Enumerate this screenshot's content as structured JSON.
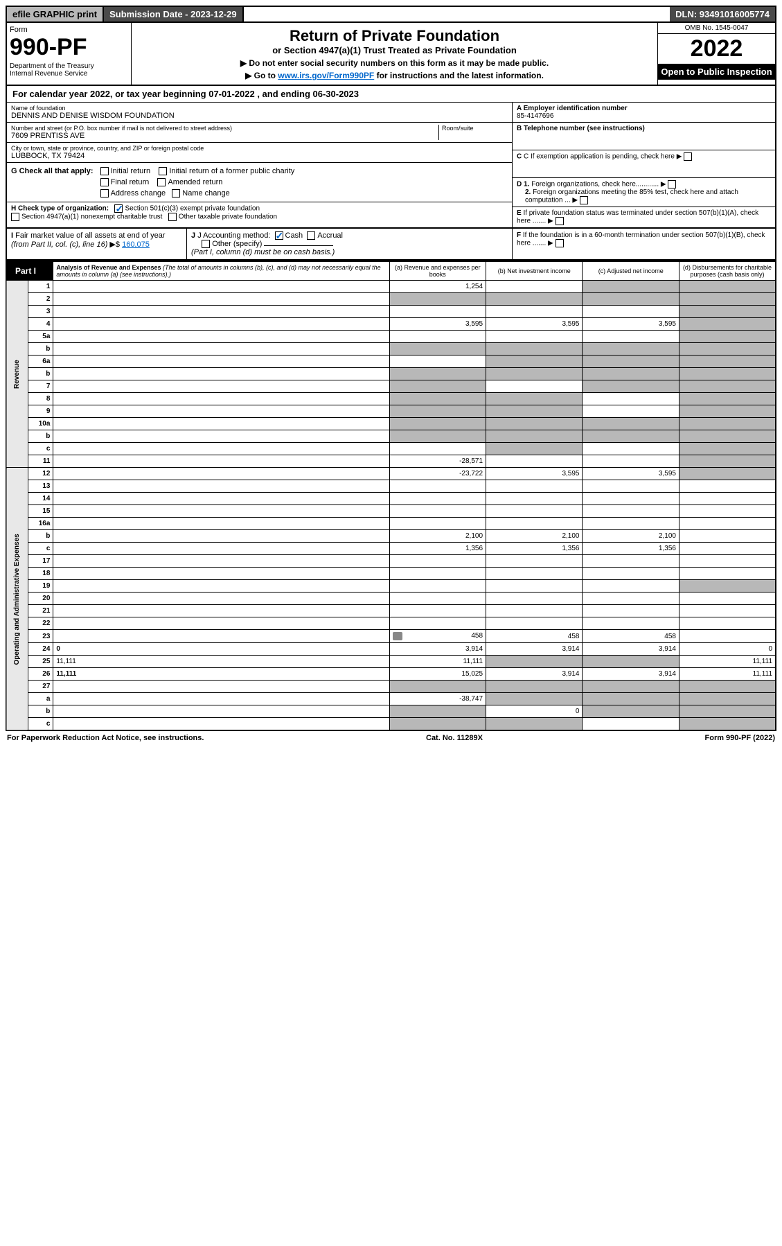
{
  "topbar": {
    "efile": "efile GRAPHIC print",
    "sub_label": "Submission Date - 2023-12-29",
    "dln": "DLN: 93491016005774"
  },
  "header": {
    "form_label": "Form",
    "form_num": "990-PF",
    "dept": "Department of the Treasury\nInternal Revenue Service",
    "title": "Return of Private Foundation",
    "subtitle": "or Section 4947(a)(1) Trust Treated as Private Foundation",
    "instr1": "▶ Do not enter social security numbers on this form as it may be made public.",
    "instr2_pre": "▶ Go to ",
    "instr2_link": "www.irs.gov/Form990PF",
    "instr2_post": " for instructions and the latest information.",
    "omb": "OMB No. 1545-0047",
    "year": "2022",
    "inspection": "Open to Public Inspection"
  },
  "cal_year": "For calendar year 2022, or tax year beginning 07-01-2022                        , and ending 06-30-2023",
  "info": {
    "name_label": "Name of foundation",
    "name_val": "DENNIS AND DENISE WISDOM FOUNDATION",
    "addr_label": "Number and street (or P.O. box number if mail is not delivered to street address)",
    "addr_val": "7609 PRENTISS AVE",
    "room_label": "Room/suite",
    "city_label": "City or town, state or province, country, and ZIP or foreign postal code",
    "city_val": "LUBBOCK, TX  79424",
    "a_label": "A Employer identification number",
    "a_val": "85-4147696",
    "b_label": "B Telephone number (see instructions)",
    "c_label": "C If exemption application is pending, check here",
    "d1_label": "D 1. Foreign organizations, check here............",
    "d2_label": "2. Foreign organizations meeting the 85% test, check here and attach computation ...",
    "e_label": "E  If private foundation status was terminated under section 507(b)(1)(A), check here .......",
    "f_label": "F  If the foundation is in a 60-month termination under section 507(b)(1)(B), check here .......",
    "g_label": "G Check all that apply:",
    "g_opts": [
      "Initial return",
      "Initial return of a former public charity",
      "Final return",
      "Amended return",
      "Address change",
      "Name change"
    ],
    "h_label": "H Check type of organization:",
    "h_opts": [
      "Section 501(c)(3) exempt private foundation",
      "Section 4947(a)(1) nonexempt charitable trust",
      "Other taxable private foundation"
    ],
    "i_label": "I Fair market value of all assets at end of year (from Part II, col. (c), line 16) ▶$",
    "i_val": "160,075",
    "j_label": "J Accounting method:",
    "j_cash": "Cash",
    "j_accrual": "Accrual",
    "j_other": "Other (specify)",
    "j_note": "(Part I, column (d) must be on cash basis.)"
  },
  "part1": {
    "badge": "Part I",
    "title": "Analysis of Revenue and Expenses",
    "note": "(The total of amounts in columns (b), (c), and (d) may not necessarily equal the amounts in column (a) (see instructions).)",
    "col_a": "(a)   Revenue and expenses per books",
    "col_b": "(b)   Net investment income",
    "col_c": "(c)   Adjusted net income",
    "col_d": "(d)   Disbursements for charitable purposes (cash basis only)"
  },
  "side": {
    "revenue": "Revenue",
    "expenses": "Operating and Administrative Expenses"
  },
  "rows": [
    {
      "n": "1",
      "d": "",
      "a": "1,254",
      "b": "",
      "c": "",
      "ds": true,
      "cs": true
    },
    {
      "n": "2",
      "d": "",
      "a": "",
      "b": "",
      "c": "",
      "ds": true,
      "cs": true,
      "bs": true,
      "as": true
    },
    {
      "n": "3",
      "d": "",
      "a": "",
      "b": "",
      "c": "",
      "ds": true
    },
    {
      "n": "4",
      "d": "",
      "a": "3,595",
      "b": "3,595",
      "c": "3,595",
      "ds": true
    },
    {
      "n": "5a",
      "d": "",
      "a": "",
      "b": "",
      "c": "",
      "ds": true
    },
    {
      "n": "b",
      "d": "",
      "a": "",
      "b": "",
      "c": "",
      "ds": true,
      "as": true,
      "bs": true,
      "cs": true,
      "underline": true
    },
    {
      "n": "6a",
      "d": "",
      "a": "",
      "b": "",
      "c": "",
      "ds": true,
      "bs": true,
      "cs": true
    },
    {
      "n": "b",
      "d": "",
      "a": "",
      "b": "",
      "c": "",
      "ds": true,
      "as": true,
      "bs": true,
      "cs": true,
      "underline": true
    },
    {
      "n": "7",
      "d": "",
      "a": "",
      "b": "",
      "c": "",
      "ds": true,
      "as": true,
      "cs": true
    },
    {
      "n": "8",
      "d": "",
      "a": "",
      "b": "",
      "c": "",
      "ds": true,
      "as": true,
      "bs": true
    },
    {
      "n": "9",
      "d": "",
      "a": "",
      "b": "",
      "c": "",
      "ds": true,
      "as": true,
      "bs": true
    },
    {
      "n": "10a",
      "d": "",
      "a": "",
      "b": "",
      "c": "",
      "ds": true,
      "as": true,
      "bs": true,
      "cs": true,
      "underline": true
    },
    {
      "n": "b",
      "d": "",
      "a": "",
      "b": "",
      "c": "",
      "ds": true,
      "as": true,
      "bs": true,
      "cs": true,
      "underline": true
    },
    {
      "n": "c",
      "d": "",
      "a": "",
      "b": "",
      "c": "",
      "ds": true,
      "bs": true
    },
    {
      "n": "11",
      "d": "",
      "a": "-28,571",
      "b": "",
      "c": "",
      "ds": true
    },
    {
      "n": "12",
      "d": "",
      "a": "-23,722",
      "b": "3,595",
      "c": "3,595",
      "ds": true,
      "bold": true
    },
    {
      "n": "13",
      "d": "",
      "a": "",
      "b": "",
      "c": ""
    },
    {
      "n": "14",
      "d": "",
      "a": "",
      "b": "",
      "c": ""
    },
    {
      "n": "15",
      "d": "",
      "a": "",
      "b": "",
      "c": ""
    },
    {
      "n": "16a",
      "d": "",
      "a": "",
      "b": "",
      "c": ""
    },
    {
      "n": "b",
      "d": "",
      "a": "2,100",
      "b": "2,100",
      "c": "2,100"
    },
    {
      "n": "c",
      "d": "",
      "a": "1,356",
      "b": "1,356",
      "c": "1,356"
    },
    {
      "n": "17",
      "d": "",
      "a": "",
      "b": "",
      "c": ""
    },
    {
      "n": "18",
      "d": "",
      "a": "",
      "b": "",
      "c": ""
    },
    {
      "n": "19",
      "d": "",
      "a": "",
      "b": "",
      "c": "",
      "ds": true
    },
    {
      "n": "20",
      "d": "",
      "a": "",
      "b": "",
      "c": ""
    },
    {
      "n": "21",
      "d": "",
      "a": "",
      "b": "",
      "c": ""
    },
    {
      "n": "22",
      "d": "",
      "a": "",
      "b": "",
      "c": ""
    },
    {
      "n": "23",
      "d": "",
      "a": "458",
      "b": "458",
      "c": "458",
      "icon": true
    },
    {
      "n": "24",
      "d": "0",
      "a": "3,914",
      "b": "3,914",
      "c": "3,914",
      "bold": true
    },
    {
      "n": "25",
      "d": "11,111",
      "a": "11,111",
      "b": "",
      "c": "",
      "bs": true,
      "cs": true
    },
    {
      "n": "26",
      "d": "11,111",
      "a": "15,025",
      "b": "3,914",
      "c": "3,914",
      "bold": true
    },
    {
      "n": "27",
      "d": "",
      "a": "",
      "b": "",
      "c": "",
      "as": true,
      "bs": true,
      "cs": true,
      "ds": true
    },
    {
      "n": "a",
      "d": "",
      "a": "-38,747",
      "b": "",
      "c": "",
      "bold": true,
      "bs": true,
      "cs": true,
      "ds": true
    },
    {
      "n": "b",
      "d": "",
      "a": "",
      "b": "0",
      "c": "",
      "bold": true,
      "as": true,
      "cs": true,
      "ds": true
    },
    {
      "n": "c",
      "d": "",
      "a": "",
      "b": "",
      "c": "",
      "bold": true,
      "as": true,
      "bs": true,
      "ds": true
    }
  ],
  "footer": {
    "left": "For Paperwork Reduction Act Notice, see instructions.",
    "mid": "Cat. No. 11289X",
    "right": "Form 990-PF (2022)"
  }
}
